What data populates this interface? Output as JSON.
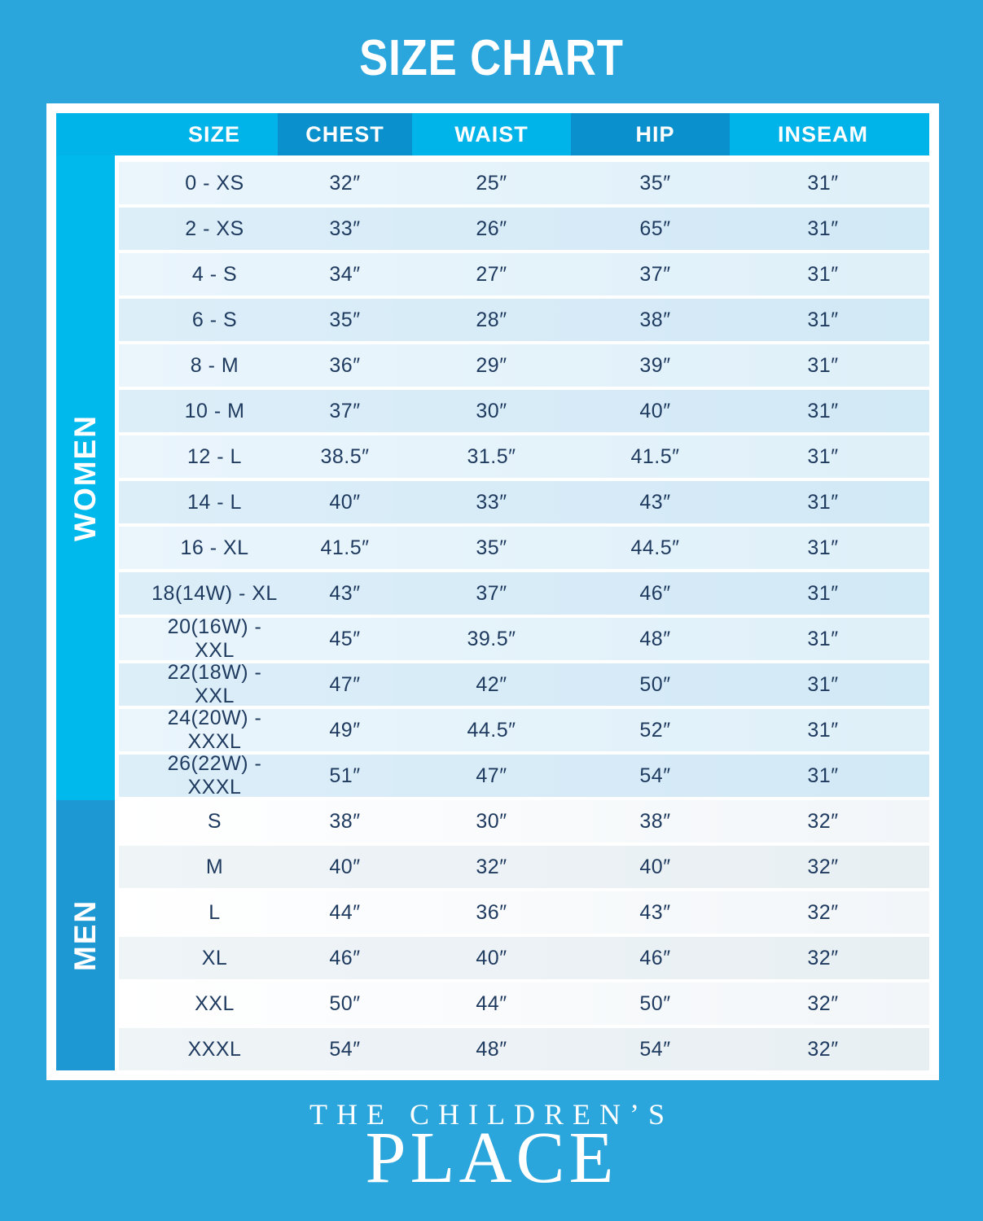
{
  "title": "SIZE CHART",
  "chart_data": {
    "type": "table",
    "title": "SIZE CHART",
    "columns": [
      "SIZE",
      "CHEST",
      "WAIST",
      "HIP",
      "INSEAM"
    ],
    "sections": [
      {
        "group": "WOMEN",
        "rows": [
          [
            "0 - XS",
            "32″",
            "25″",
            "35″",
            "31″"
          ],
          [
            "2 - XS",
            "33″",
            "26″",
            "65″",
            "31″"
          ],
          [
            "4 - S",
            "34″",
            "27″",
            "37″",
            "31″"
          ],
          [
            "6 - S",
            "35″",
            "28″",
            "38″",
            "31″"
          ],
          [
            "8 - M",
            "36″",
            "29″",
            "39″",
            "31″"
          ],
          [
            "10 - M",
            "37″",
            "30″",
            "40″",
            "31″"
          ],
          [
            "12 - L",
            "38.5″",
            "31.5″",
            "41.5″",
            "31″"
          ],
          [
            "14 - L",
            "40″",
            "33″",
            "43″",
            "31″"
          ],
          [
            "16 - XL",
            "41.5″",
            "35″",
            "44.5″",
            "31″"
          ],
          [
            "18(14W) - XL",
            "43″",
            "37″",
            "46″",
            "31″"
          ],
          [
            "20(16W) - XXL",
            "45″",
            "39.5″",
            "48″",
            "31″"
          ],
          [
            "22(18W) - XXL",
            "47″",
            "42″",
            "50″",
            "31″"
          ],
          [
            "24(20W) - XXXL",
            "49″",
            "44.5″",
            "52″",
            "31″"
          ],
          [
            "26(22W) - XXXL",
            "51″",
            "47″",
            "54″",
            "31″"
          ]
        ]
      },
      {
        "group": "MEN",
        "rows": [
          [
            "S",
            "38″",
            "30″",
            "38″",
            "32″"
          ],
          [
            "M",
            "40″",
            "32″",
            "40″",
            "32″"
          ],
          [
            "L",
            "44″",
            "36″",
            "43″",
            "32″"
          ],
          [
            "XL",
            "46″",
            "40″",
            "46″",
            "32″"
          ],
          [
            "XXL",
            "50″",
            "44″",
            "50″",
            "32″"
          ],
          [
            "XXXL",
            "54″",
            "48″",
            "54″",
            "32″"
          ]
        ]
      }
    ]
  },
  "footer": {
    "brand_line1": "THE CHILDREN’S",
    "brand_line2": "PLACE"
  },
  "colors": {
    "background": "#2BA6DC",
    "header_band": "#00B3E8",
    "header_band_dark": "#0A90CC",
    "sidebar_women": "#00B9EC",
    "sidebar_men": "#1E98D3",
    "row_text": "#1E3A5F",
    "title_text": "#FFFFFF"
  }
}
